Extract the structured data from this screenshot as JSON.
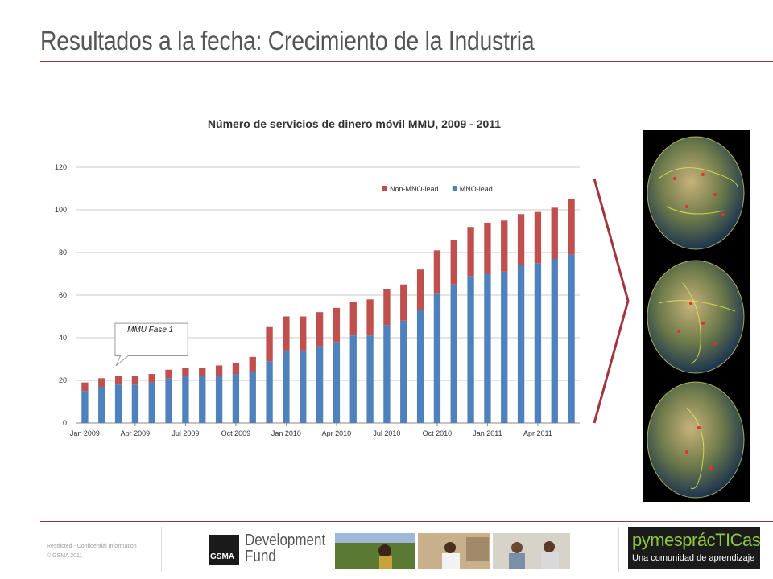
{
  "slide": {
    "title": "Resultados a la fecha: Crecimiento de la Industria",
    "accent_color": "#a0353d"
  },
  "callout": {
    "text": "MMU Fase 1"
  },
  "footer": {
    "confidential": "Restricted - Confidential Information",
    "copyright": "© GSMA 2011",
    "partner_logo": "Development Fund",
    "partner_logo_name": "GSMA",
    "community_title": "pymesprácTICas",
    "community_subtitle": "Una comunidad de aprendizaje"
  },
  "chart_data": {
    "type": "bar",
    "stacked": true,
    "title": "Número de servicios de dinero móvil MMU, 2009 - 2011",
    "xlabel": "",
    "ylabel": "",
    "ylim": [
      0,
      120
    ],
    "yticks": [
      0,
      20,
      40,
      60,
      80,
      100,
      120
    ],
    "grid": true,
    "legend_position": "top-right",
    "x_tick_labels": [
      {
        "index": 0,
        "label": "Jan 2009"
      },
      {
        "index": 3,
        "label": "Apr 2009"
      },
      {
        "index": 6,
        "label": "Jul 2009"
      },
      {
        "index": 9,
        "label": "Oct 2009"
      },
      {
        "index": 12,
        "label": "Jan 2010"
      },
      {
        "index": 15,
        "label": "Apr 2010"
      },
      {
        "index": 18,
        "label": "Jul 2010"
      },
      {
        "index": 21,
        "label": "Oct 2010"
      },
      {
        "index": 24,
        "label": "Jan 2011"
      },
      {
        "index": 27,
        "label": "Apr 2011"
      }
    ],
    "series": [
      {
        "name": "MNO-lead",
        "color": "#4f81bd",
        "values": [
          15,
          17,
          18,
          18,
          19,
          21,
          22,
          22,
          22,
          23,
          24,
          29,
          34,
          34,
          36,
          38,
          41,
          41,
          46,
          48,
          53,
          61,
          65,
          69,
          70,
          71,
          74,
          75,
          77,
          79
        ]
      },
      {
        "name": "Non-MNO-lead",
        "color": "#c0504d",
        "values": [
          4,
          4,
          4,
          4,
          4,
          4,
          4,
          4,
          5,
          5,
          7,
          16,
          16,
          16,
          16,
          16,
          16,
          17,
          17,
          17,
          19,
          20,
          21,
          23,
          24,
          24,
          24,
          24,
          24,
          26
        ]
      }
    ],
    "legend_order": [
      "Non-MNO-lead",
      "MNO-lead"
    ]
  }
}
